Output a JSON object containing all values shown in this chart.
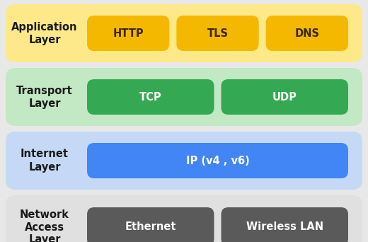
{
  "background_color": "#e8e8e8",
  "layers": [
    {
      "name": "Application\nLayer",
      "bg_color": "#fde98a",
      "label_color": "#1a1a1a",
      "protocols": [
        {
          "label": "HTTP",
          "color": "#f5b800",
          "text_color": "#3a2800"
        },
        {
          "label": "TLS",
          "color": "#f5b800",
          "text_color": "#3a2800"
        },
        {
          "label": "DNS",
          "color": "#f5b800",
          "text_color": "#3a2800"
        }
      ]
    },
    {
      "name": "Transport\nLayer",
      "bg_color": "#c2e8c4",
      "label_color": "#1a1a1a",
      "protocols": [
        {
          "label": "TCP",
          "color": "#34a853",
          "text_color": "#ffffff"
        },
        {
          "label": "UDP",
          "color": "#34a853",
          "text_color": "#ffffff"
        }
      ]
    },
    {
      "name": "Internet\nLayer",
      "bg_color": "#c5d9f7",
      "label_color": "#1a1a1a",
      "protocols": [
        {
          "label": "IP (v4 , v6)",
          "color": "#4285f4",
          "text_color": "#ffffff"
        }
      ]
    },
    {
      "name": "Network\nAccess\nLayer",
      "bg_color": "#e0e0e0",
      "label_color": "#1a1a1a",
      "protocols": [
        {
          "label": "Ethernet",
          "color": "#5a5a5a",
          "text_color": "#ffffff"
        },
        {
          "label": "Wireless LAN",
          "color": "#5a5a5a",
          "text_color": "#ffffff"
        }
      ]
    }
  ],
  "fig_w": 5.2,
  "fig_h": 3.42,
  "dpi": 100
}
